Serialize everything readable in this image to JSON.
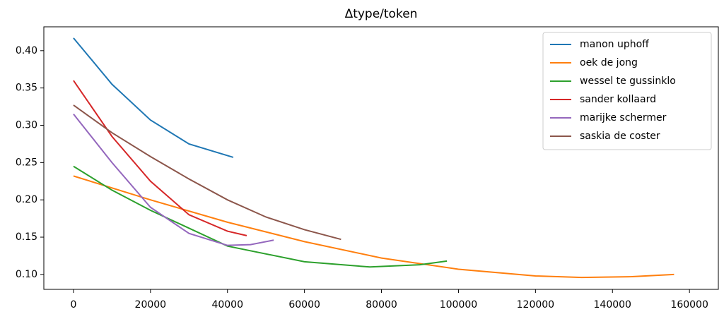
{
  "chart_data": {
    "type": "line",
    "title": "Δtype/token",
    "xlim": [
      -7700,
      167500
    ],
    "ylim": [
      0.08,
      0.432
    ],
    "xticks": [
      0,
      20000,
      40000,
      60000,
      80000,
      100000,
      120000,
      140000,
      160000
    ],
    "yticks": [
      {
        "value": 0.1,
        "label": "0.10"
      },
      0.15,
      {
        "value": 0.2,
        "label": "0.20"
      },
      0.25,
      {
        "value": 0.3,
        "label": "0.30"
      },
      0.35,
      {
        "value": 0.4,
        "label": "0.40"
      }
    ],
    "legend": "upper right",
    "series": [
      {
        "name": "manon uphoff",
        "color": "#1f77b4",
        "x": [
          0,
          10000,
          20000,
          30000,
          41500
        ],
        "values": [
          0.417,
          0.355,
          0.307,
          0.275,
          0.257
        ]
      },
      {
        "name": "oek de jong",
        "color": "#ff7f0e",
        "x": [
          0,
          20000,
          40000,
          60000,
          80000,
          100000,
          120000,
          132000,
          145000,
          156000
        ],
        "values": [
          0.232,
          0.2,
          0.17,
          0.144,
          0.122,
          0.107,
          0.098,
          0.096,
          0.097,
          0.1
        ]
      },
      {
        "name": "wessel te gussinklo",
        "color": "#2ca02c",
        "x": [
          0,
          10000,
          20000,
          40000,
          60000,
          77000,
          90000,
          97000
        ],
        "values": [
          0.245,
          0.213,
          0.186,
          0.138,
          0.117,
          0.11,
          0.113,
          0.118
        ]
      },
      {
        "name": "sander kollaard",
        "color": "#d62728",
        "x": [
          0,
          10000,
          20000,
          30000,
          40000,
          45000
        ],
        "values": [
          0.36,
          0.285,
          0.225,
          0.18,
          0.158,
          0.152
        ]
      },
      {
        "name": "marijke schermer",
        "color": "#9467bd",
        "x": [
          0,
          10000,
          20000,
          30000,
          40000,
          46000,
          52000
        ],
        "values": [
          0.315,
          0.25,
          0.19,
          0.155,
          0.139,
          0.14,
          0.146
        ]
      },
      {
        "name": "saskia de coster",
        "color": "#8c564b",
        "x": [
          0,
          10000,
          20000,
          30000,
          40000,
          50000,
          60000,
          69500
        ],
        "values": [
          0.327,
          0.29,
          0.258,
          0.228,
          0.2,
          0.177,
          0.16,
          0.147
        ]
      }
    ]
  }
}
